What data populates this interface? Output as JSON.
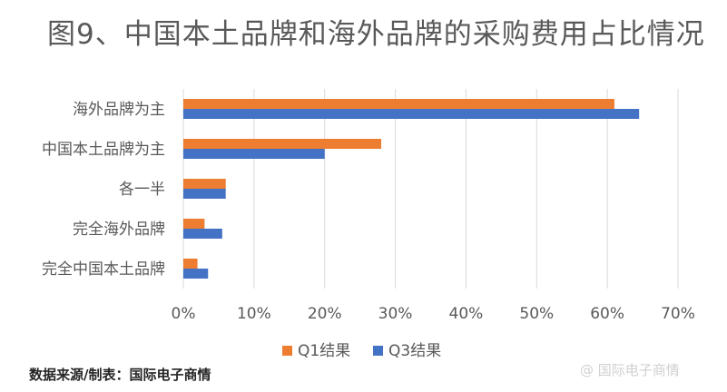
{
  "page": {
    "title": "图9、中国本土品牌和海外品牌的采购费用占比情况",
    "source": "数据来源/制表：国际电子商情",
    "watermark": "@ 国际电子商情"
  },
  "chart_data": {
    "type": "bar",
    "orientation": "horizontal",
    "title": "图9、中国本土品牌和海外品牌的采购费用占比情况",
    "categories": [
      "海外品牌为主",
      "中国本土品牌为主",
      "各一半",
      "完全海外品牌",
      "完全中国本土品牌"
    ],
    "series": [
      {
        "name": "Q1结果",
        "color": "#ED7D31",
        "values": [
          61,
          28,
          6,
          3,
          2
        ]
      },
      {
        "name": "Q3结果",
        "color": "#4472C4",
        "values": [
          64.5,
          20,
          6,
          5.5,
          3.5
        ]
      }
    ],
    "xlim": [
      0,
      70
    ],
    "xticks": [
      0,
      10,
      20,
      30,
      40,
      50,
      60,
      70
    ],
    "tick_format": "percent",
    "xlabel": "",
    "ylabel": "",
    "grid": true,
    "legend_position": "bottom",
    "gridline_color": "#d9d9d9"
  }
}
